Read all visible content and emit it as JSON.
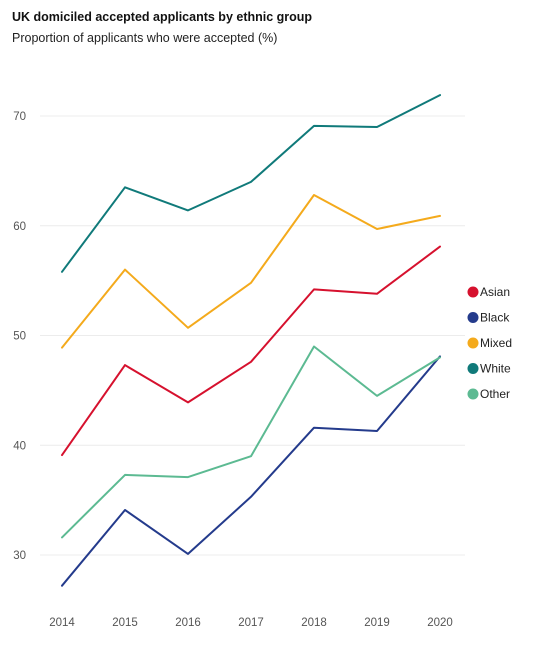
{
  "chart_data": {
    "type": "line",
    "title": "UK domiciled accepted applicants by ethnic group",
    "subtitle": "Proportion of applicants who were accepted (%)",
    "xlabel": "",
    "ylabel": "",
    "x": [
      "2014",
      "2015",
      "2016",
      "2017",
      "2018",
      "2019",
      "2020"
    ],
    "yticks": [
      30,
      40,
      50,
      60,
      70
    ],
    "ylim": [
      25,
      75
    ],
    "grid": true,
    "legend_position": "right",
    "series": [
      {
        "name": "Asian",
        "color": "#d6112e",
        "values": [
          39.1,
          47.3,
          43.9,
          47.6,
          54.2,
          53.8,
          58.1
        ]
      },
      {
        "name": "Black",
        "color": "#243b8c",
        "values": [
          27.2,
          34.1,
          30.1,
          35.3,
          41.6,
          41.3,
          48.1
        ]
      },
      {
        "name": "Mixed",
        "color": "#f4aa1c",
        "values": [
          48.9,
          56.0,
          50.7,
          54.8,
          62.8,
          59.7,
          60.9
        ]
      },
      {
        "name": "White",
        "color": "#107a7a",
        "values": [
          55.8,
          63.5,
          61.4,
          64.0,
          69.1,
          69.0,
          71.9
        ]
      },
      {
        "name": "Other",
        "color": "#5cba92",
        "values": [
          31.6,
          37.3,
          37.1,
          39.0,
          49.0,
          44.5,
          48.0
        ]
      }
    ]
  }
}
